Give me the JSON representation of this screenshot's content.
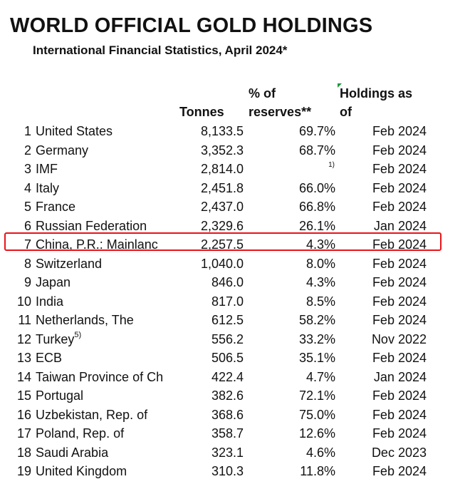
{
  "title": "WORLD OFFICIAL GOLD HOLDINGS",
  "subtitle": "International Financial Statistics, April 2024*",
  "headers": {
    "tonnes": "Tonnes",
    "pct_line1": "% of",
    "pct_line2": "reserves**",
    "holdings_line1": "Holdings as",
    "holdings_line2": "of"
  },
  "highlight_color": "#e8141a",
  "rows": [
    {
      "rank": "1",
      "country": "United States",
      "tonnes": "8,133.5",
      "pct": "69.7%",
      "date": "Feb 2024"
    },
    {
      "rank": "2",
      "country": "Germany",
      "tonnes": "3,352.3",
      "pct": "68.7%",
      "date": "Feb 2024"
    },
    {
      "rank": "3",
      "country": "IMF",
      "tonnes": "2,814.0",
      "pct": "",
      "note": "1)",
      "date": "Feb 2024"
    },
    {
      "rank": "4",
      "country": "Italy",
      "tonnes": "2,451.8",
      "pct": "66.0%",
      "date": "Feb 2024"
    },
    {
      "rank": "5",
      "country": "France",
      "tonnes": "2,437.0",
      "pct": "66.8%",
      "date": "Feb 2024"
    },
    {
      "rank": "6",
      "country": "Russian Federation",
      "tonnes": "2,329.6",
      "pct": "26.1%",
      "date": "Jan 2024"
    },
    {
      "rank": "7",
      "country": "China, P.R.: Mainlanc",
      "tonnes": "2,257.5",
      "pct": "4.3%",
      "date": "Feb 2024"
    },
    {
      "rank": "8",
      "country": "Switzerland",
      "tonnes": "1,040.0",
      "pct": "8.0%",
      "date": "Feb 2024"
    },
    {
      "rank": "9",
      "country": "Japan",
      "tonnes": "846.0",
      "pct": "4.3%",
      "date": "Feb 2024"
    },
    {
      "rank": "10",
      "country": "India",
      "tonnes": "817.0",
      "pct": "8.5%",
      "date": "Feb 2024"
    },
    {
      "rank": "11",
      "country": "Netherlands, The",
      "tonnes": "612.5",
      "pct": "58.2%",
      "date": "Feb 2024"
    },
    {
      "rank": "12",
      "country": "Turkey",
      "sup": "5)",
      "tonnes": "556.2",
      "pct": "33.2%",
      "date": "Nov 2022"
    },
    {
      "rank": "13",
      "country": "ECB",
      "tonnes": "506.5",
      "pct": "35.1%",
      "date": "Feb 2024"
    },
    {
      "rank": "14",
      "country": "Taiwan Province of Ch",
      "tonnes": "422.4",
      "pct": "4.7%",
      "date": "Jan 2024"
    },
    {
      "rank": "15",
      "country": "Portugal",
      "tonnes": "382.6",
      "pct": "72.1%",
      "date": "Feb 2024"
    },
    {
      "rank": "16",
      "country": "Uzbekistan, Rep. of",
      "tonnes": "368.6",
      "pct": "75.0%",
      "date": "Feb 2024"
    },
    {
      "rank": "17",
      "country": "Poland, Rep. of",
      "tonnes": "358.7",
      "pct": "12.6%",
      "date": "Feb 2024"
    },
    {
      "rank": "18",
      "country": "Saudi Arabia",
      "tonnes": "323.1",
      "pct": "4.6%",
      "date": "Dec 2023"
    },
    {
      "rank": "19",
      "country": "United Kingdom",
      "tonnes": "310.3",
      "pct": "11.8%",
      "date": "Feb 2024"
    }
  ]
}
